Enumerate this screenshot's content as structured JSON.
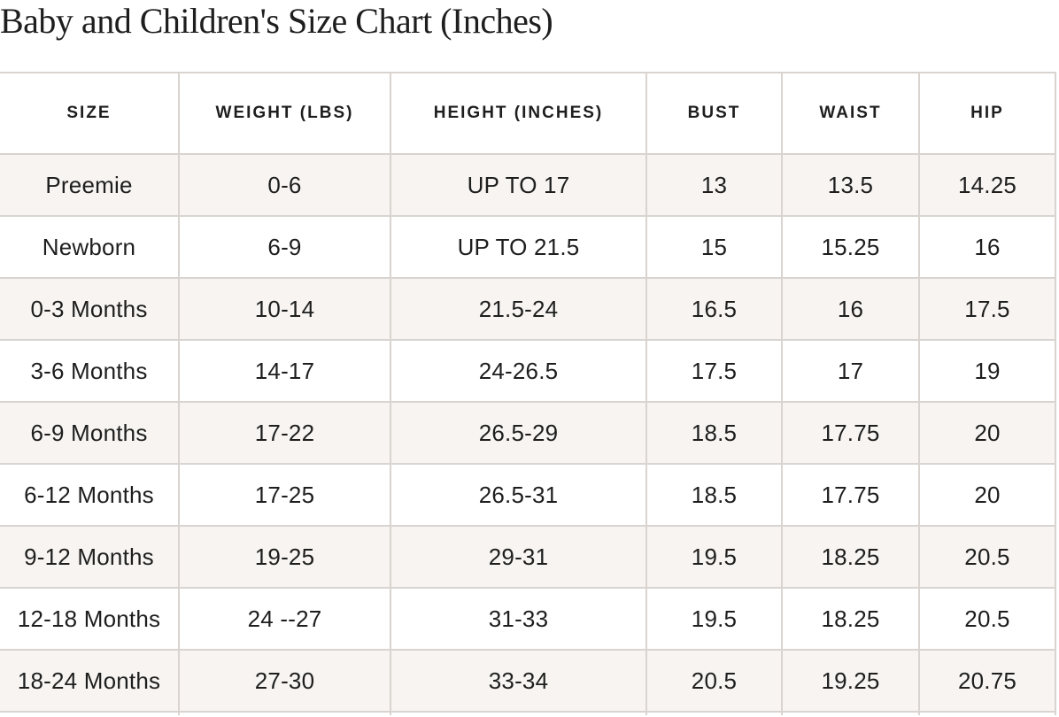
{
  "page": {
    "title": "Baby and Children's Size Chart (Inches)"
  },
  "size_chart": {
    "columns": [
      "SIZE",
      "WEIGHT (LBS)",
      "HEIGHT (INCHES)",
      "BUST",
      "WAIST",
      "HIP"
    ],
    "rows": [
      [
        "Preemie",
        "0-6",
        "UP TO 17",
        "13",
        "13.5",
        "14.25"
      ],
      [
        "Newborn",
        "6-9",
        "UP TO 21.5",
        "15",
        "15.25",
        "16"
      ],
      [
        "0-3 Months",
        "10-14",
        "21.5-24",
        "16.5",
        "16",
        "17.5"
      ],
      [
        "3-6 Months",
        "14-17",
        "24-26.5",
        "17.5",
        "17",
        "19"
      ],
      [
        "6-9 Months",
        "17-22",
        "26.5-29",
        "18.5",
        "17.75",
        "20"
      ],
      [
        "6-12 Months",
        "17-25",
        "26.5-31",
        "18.5",
        "17.75",
        "20"
      ],
      [
        "9-12 Months",
        "19-25",
        "29-31",
        "19.5",
        "18.25",
        "20.5"
      ],
      [
        "12-18 Months",
        "24 --27",
        "31-33",
        "19.5",
        "18.25",
        "20.5"
      ],
      [
        "18-24 Months",
        "27-30",
        "33-34",
        "20.5",
        "19.25",
        "20.75"
      ]
    ]
  },
  "colors": {
    "row_stripe": "#f7f4f1",
    "border": "#d9d4d0",
    "text": "#1e1e1e",
    "background": "#ffffff"
  }
}
